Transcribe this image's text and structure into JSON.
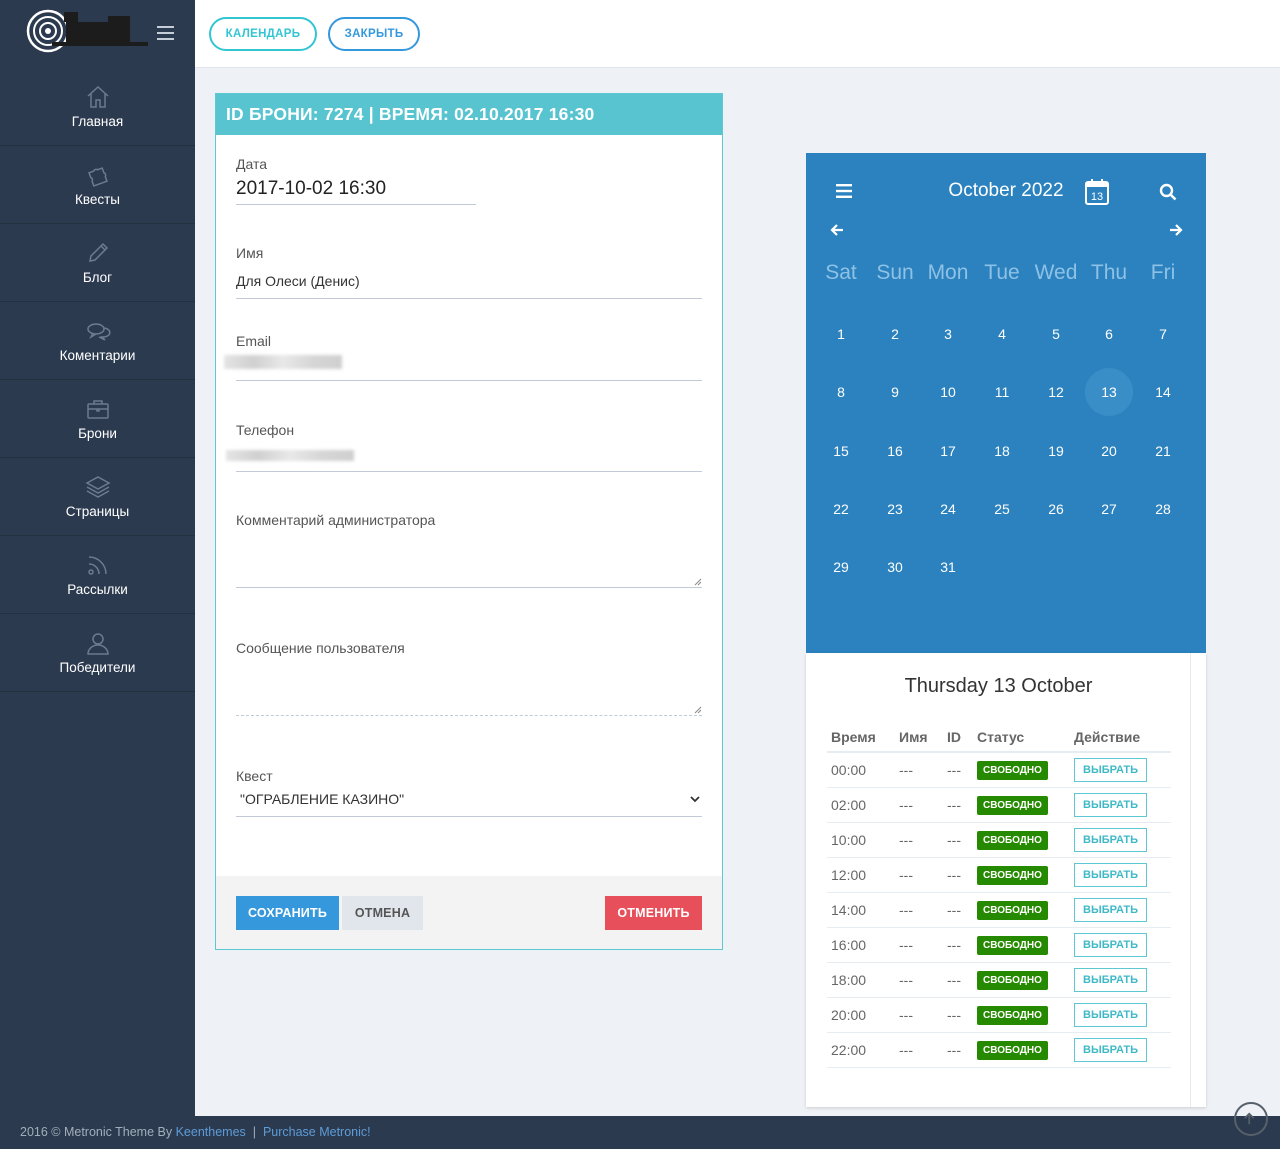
{
  "header": {
    "calendar_btn": "КАЛЕНДАРЬ",
    "close_btn": "ЗАКРЫТЬ"
  },
  "sidebar": {
    "items": [
      {
        "label": "Главная",
        "icon": "home-icon"
      },
      {
        "label": "Квесты",
        "icon": "puzzle-icon"
      },
      {
        "label": "Блог",
        "icon": "pencil-icon"
      },
      {
        "label": "Коментарии",
        "icon": "comments-icon"
      },
      {
        "label": "Брони",
        "icon": "briefcase-icon"
      },
      {
        "label": "Страницы",
        "icon": "layers-icon"
      },
      {
        "label": "Рассылки",
        "icon": "rss-icon"
      },
      {
        "label": "Победители",
        "icon": "user-icon"
      }
    ]
  },
  "booking": {
    "title": "ID БРОНИ: 7274 | ВРЕМЯ: 02.10.2017 16:30",
    "date_label": "Дата",
    "date_value": "2017-10-02 16:30",
    "name_label": "Имя",
    "name_value": "Для Олеси (Денис)",
    "email_label": "Email",
    "phone_label": "Телефон",
    "admin_comment_label": "Комментарий администратора",
    "user_message_label": "Сообщение пользователя",
    "quest_label": "Квест",
    "quest_value": "\"ОГРАБЛЕНИЕ КАЗИНО\"",
    "save_btn": "СОХРАНИТЬ",
    "cancel_btn": "ОТМЕНА",
    "abort_btn": "ОТМЕНИТЬ"
  },
  "calendar": {
    "month_title": "October 2022",
    "calendar_icon_day": "13",
    "weekdays": [
      "Sat",
      "Sun",
      "Mon",
      "Tue",
      "Wed",
      "Thu",
      "Fri"
    ],
    "days": [
      "1",
      "2",
      "3",
      "4",
      "5",
      "6",
      "7",
      "8",
      "9",
      "10",
      "11",
      "12",
      "13",
      "14",
      "15",
      "16",
      "17",
      "18",
      "19",
      "20",
      "21",
      "22",
      "23",
      "24",
      "25",
      "26",
      "27",
      "28",
      "29",
      "30",
      "31"
    ],
    "selected_day": "13"
  },
  "day_panel": {
    "heading": "Thursday 13 October",
    "columns": [
      "Время",
      "Имя",
      "ID",
      "Статус",
      "Действие"
    ],
    "rows": [
      {
        "time": "00:00",
        "name": "---",
        "id": "---",
        "status": "СВОБОДНО",
        "action": "ВЫБРАТЬ"
      },
      {
        "time": "02:00",
        "name": "---",
        "id": "---",
        "status": "СВОБОДНО",
        "action": "ВЫБРАТЬ"
      },
      {
        "time": "10:00",
        "name": "---",
        "id": "---",
        "status": "СВОБОДНО",
        "action": "ВЫБРАТЬ"
      },
      {
        "time": "12:00",
        "name": "---",
        "id": "---",
        "status": "СВОБОДНО",
        "action": "ВЫБРАТЬ"
      },
      {
        "time": "14:00",
        "name": "---",
        "id": "---",
        "status": "СВОБОДНО",
        "action": "ВЫБРАТЬ"
      },
      {
        "time": "16:00",
        "name": "---",
        "id": "---",
        "status": "СВОБОДНО",
        "action": "ВЫБРАТЬ"
      },
      {
        "time": "18:00",
        "name": "---",
        "id": "---",
        "status": "СВОБОДНО",
        "action": "ВЫБРАТЬ"
      },
      {
        "time": "20:00",
        "name": "---",
        "id": "---",
        "status": "СВОБОДНО",
        "action": "ВЫБРАТЬ"
      },
      {
        "time": "22:00",
        "name": "---",
        "id": "---",
        "status": "СВОБОДНО",
        "action": "ВЫБРАТЬ"
      }
    ]
  },
  "footer": {
    "copyright": "2016 © Metronic Theme By",
    "keenthemes_link": "Keenthemes",
    "separator": "|",
    "purchase_link": "Purchase Metronic!"
  },
  "colors": {
    "sidebar_bg": "#2c3a4f",
    "accent_teal": "#57c4d0",
    "calendar_blue": "#2b82be",
    "primary_blue": "#3598dc",
    "danger_red": "#e7505a",
    "status_green": "#268a00"
  }
}
